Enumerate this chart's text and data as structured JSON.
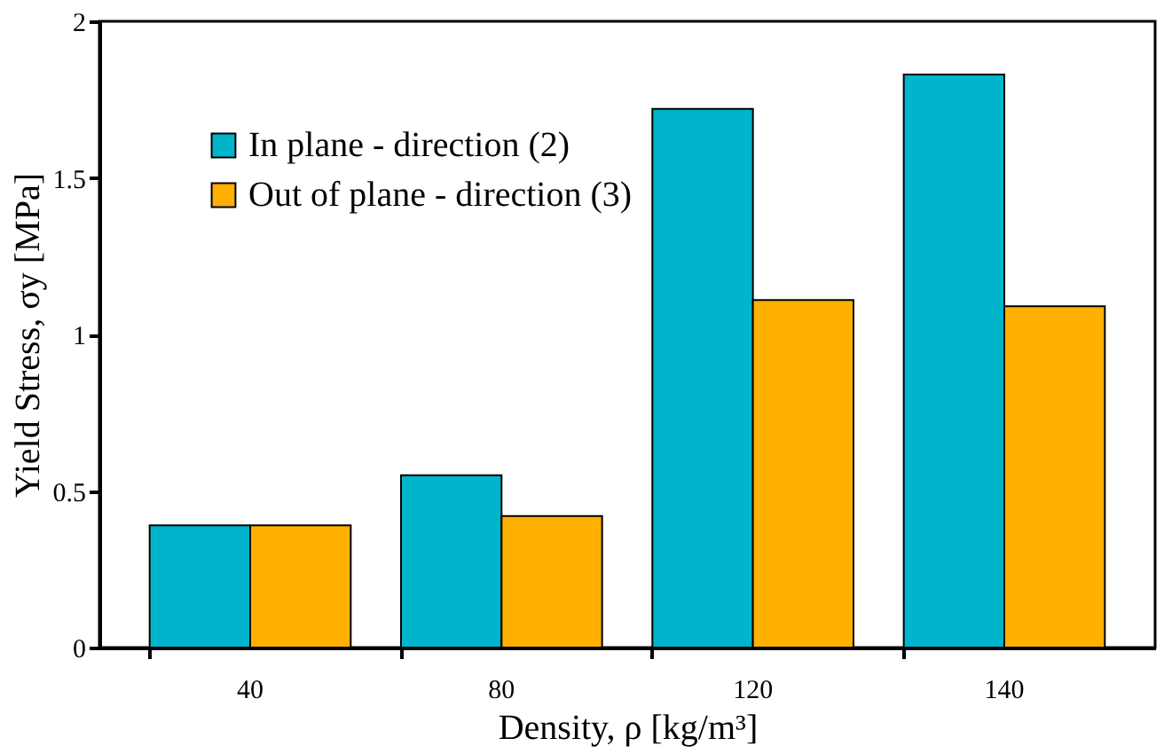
{
  "chart_data": {
    "type": "bar",
    "xlabel": "Density, ρ [kg/m³]",
    "ylabel": "Yield Stress, σy [MPa]",
    "categories": [
      "40",
      "80",
      "120",
      "140"
    ],
    "series": [
      {
        "name": "In plane - direction (2)",
        "color": "#00b4cc",
        "values": [
          0.39,
          0.55,
          1.72,
          1.83
        ]
      },
      {
        "name": "Out of plane - direction (3)",
        "color": "#ffb000",
        "values": [
          0.39,
          0.42,
          1.11,
          1.09
        ]
      }
    ],
    "ylim": [
      0,
      2
    ],
    "yticks": [
      0,
      0.5,
      1,
      1.5,
      2
    ],
    "grid": false,
    "legend": "top left"
  }
}
